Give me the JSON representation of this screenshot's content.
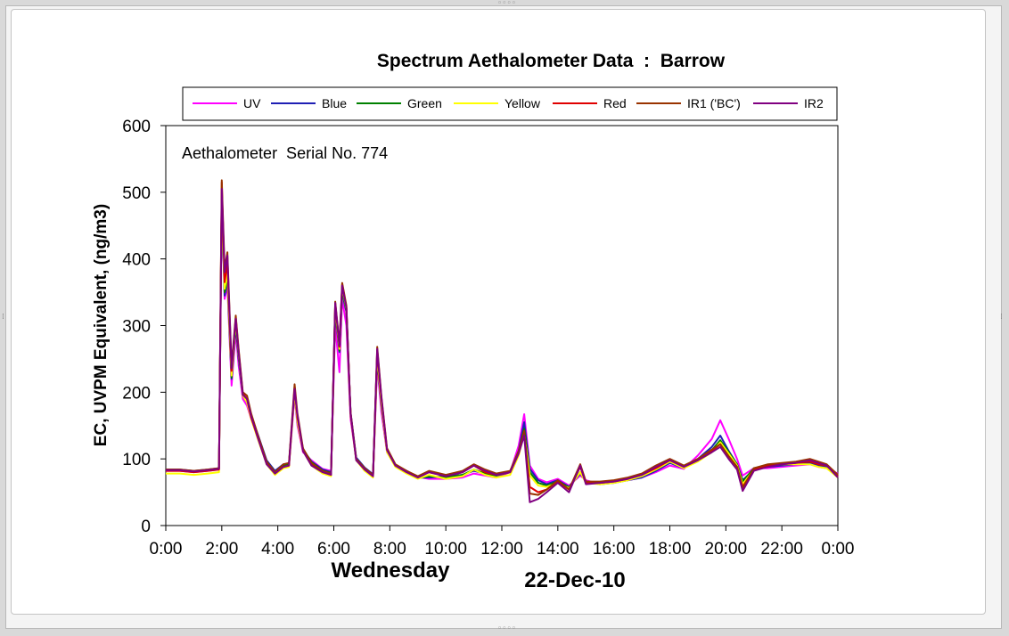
{
  "chart_data": {
    "type": "line",
    "title": "Spectrum Aethalometer Data  :  Barrow",
    "annotation": "Aethalometer  Serial No. 774",
    "ylabel": "EC, UVPM Equivalent, (ng/m3)",
    "xlabel_day": "Wednesday",
    "xlabel_date": "22-Dec-10",
    "ylim": [
      0,
      600
    ],
    "xlim": [
      0,
      24
    ],
    "y_ticks": [
      "0",
      "100",
      "200",
      "300",
      "400",
      "500",
      "600"
    ],
    "x_ticks": [
      "0:00",
      "2:00",
      "4:00",
      "6:00",
      "8:00",
      "10:00",
      "12:00",
      "14:00",
      "16:00",
      "18:00",
      "20:00",
      "22:00",
      "0:00"
    ],
    "legend_position": "top",
    "grid": false,
    "x": [
      0,
      0.5,
      1,
      1.5,
      1.9,
      2.0,
      2.1,
      2.2,
      2.35,
      2.5,
      2.6,
      2.75,
      2.9,
      3.05,
      3.3,
      3.6,
      3.9,
      4.2,
      4.4,
      4.6,
      4.7,
      4.9,
      5.2,
      5.6,
      5.9,
      6.05,
      6.2,
      6.3,
      6.45,
      6.6,
      6.8,
      7.1,
      7.4,
      7.55,
      7.7,
      7.9,
      8.2,
      8.6,
      9.0,
      9.4,
      10.0,
      10.6,
      11.0,
      11.4,
      11.8,
      12.3,
      12.6,
      12.8,
      13.0,
      13.3,
      13.6,
      14.0,
      14.4,
      14.8,
      15.0,
      15.5,
      16.0,
      16.5,
      17.0,
      17.5,
      18.0,
      18.5,
      19.0,
      19.5,
      19.8,
      20.1,
      20.4,
      20.6,
      21.0,
      21.5,
      22.0,
      22.5,
      23.0,
      23.3,
      23.6,
      24.0
    ],
    "series": [
      {
        "name": "UV",
        "color": "#ff00ff",
        "values": [
          82,
          82,
          80,
          82,
          84,
          490,
          340,
          360,
          210,
          290,
          240,
          190,
          180,
          160,
          130,
          95,
          80,
          88,
          90,
          195,
          150,
          110,
          98,
          85,
          82,
          300,
          230,
          340,
          300,
          160,
          100,
          85,
          75,
          240,
          170,
          110,
          90,
          82,
          73,
          70,
          70,
          72,
          78,
          75,
          72,
          80,
          120,
          167,
          90,
          70,
          65,
          70,
          60,
          75,
          68,
          62,
          66,
          68,
          72,
          80,
          90,
          85,
          105,
          130,
          158,
          130,
          100,
          75,
          86,
          86,
          88,
          90,
          92,
          88,
          86,
          78
        ]
      },
      {
        "name": "Blue",
        "color": "#1f1fb4",
        "values": [
          84,
          84,
          82,
          84,
          86,
          495,
          345,
          370,
          220,
          300,
          250,
          195,
          185,
          165,
          135,
          98,
          82,
          92,
          93,
          200,
          155,
          114,
          96,
          84,
          80,
          320,
          260,
          350,
          320,
          170,
          102,
          87,
          77,
          250,
          180,
          112,
          91,
          82,
          72,
          72,
          74,
          76,
          82,
          78,
          75,
          82,
          112,
          155,
          85,
          68,
          62,
          68,
          58,
          78,
          66,
          62,
          64,
          68,
          72,
          82,
          94,
          86,
          100,
          118,
          135,
          112,
          92,
          68,
          84,
          88,
          90,
          92,
          94,
          90,
          88,
          76
        ]
      },
      {
        "name": "Green",
        "color": "#008000",
        "values": [
          83,
          83,
          81,
          83,
          85,
          498,
          350,
          375,
          222,
          305,
          255,
          196,
          186,
          164,
          132,
          96,
          80,
          90,
          92,
          202,
          158,
          115,
          95,
          82,
          79,
          325,
          262,
          355,
          322,
          168,
          100,
          85,
          76,
          252,
          182,
          112,
          90,
          80,
          71,
          74,
          72,
          76,
          84,
          78,
          75,
          80,
          110,
          145,
          80,
          64,
          60,
          66,
          57,
          80,
          66,
          63,
          65,
          69,
          74,
          84,
          96,
          87,
          98,
          113,
          128,
          110,
          92,
          66,
          86,
          90,
          92,
          94,
          96,
          92,
          90,
          76
        ]
      },
      {
        "name": "Yellow",
        "color": "#ffff00",
        "values": [
          78,
          78,
          76,
          78,
          80,
          500,
          355,
          380,
          225,
          308,
          258,
          195,
          185,
          160,
          128,
          92,
          76,
          86,
          88,
          200,
          156,
          112,
          90,
          78,
          74,
          328,
          265,
          358,
          325,
          166,
          98,
          82,
          72,
          255,
          184,
          110,
          88,
          78,
          70,
          76,
          70,
          74,
          84,
          76,
          72,
          76,
          105,
          138,
          75,
          60,
          58,
          64,
          56,
          80,
          64,
          62,
          64,
          68,
          74,
          84,
          96,
          86,
          96,
          110,
          125,
          108,
          90,
          62,
          84,
          90,
          92,
          92,
          92,
          88,
          86,
          72
        ]
      },
      {
        "name": "Red",
        "color": "#e00000",
        "values": [
          82,
          82,
          80,
          82,
          84,
          515,
          365,
          395,
          232,
          312,
          262,
          198,
          190,
          162,
          130,
          94,
          78,
          88,
          90,
          208,
          162,
          115,
          92,
          80,
          76,
          333,
          268,
          362,
          328,
          168,
          99,
          84,
          74,
          262,
          190,
          114,
          90,
          80,
          72,
          80,
          74,
          80,
          90,
          80,
          76,
          80,
          110,
          138,
          58,
          50,
          54,
          66,
          54,
          88,
          64,
          64,
          66,
          70,
          76,
          86,
          98,
          88,
          98,
          112,
          122,
          104,
          88,
          58,
          84,
          90,
          92,
          94,
          96,
          92,
          90,
          74
        ]
      },
      {
        "name": "IR1 ('BC')",
        "color": "#993300",
        "values": [
          84,
          84,
          82,
          84,
          86,
          518,
          385,
          410,
          240,
          315,
          265,
          200,
          195,
          168,
          134,
          96,
          80,
          92,
          94,
          212,
          168,
          116,
          94,
          82,
          78,
          336,
          272,
          364,
          330,
          170,
          100,
          86,
          76,
          268,
          194,
          116,
          92,
          82,
          74,
          82,
          76,
          82,
          92,
          84,
          78,
          82,
          112,
          142,
          48,
          46,
          54,
          68,
          54,
          92,
          66,
          66,
          68,
          72,
          78,
          90,
          100,
          90,
          100,
          114,
          122,
          104,
          88,
          56,
          86,
          92,
          94,
          96,
          100,
          96,
          92,
          76
        ]
      },
      {
        "name": "IR2",
        "color": "#800080",
        "values": [
          83,
          83,
          81,
          83,
          85,
          505,
          380,
          405,
          236,
          310,
          260,
          196,
          190,
          164,
          130,
          92,
          78,
          88,
          90,
          205,
          165,
          112,
          90,
          80,
          76,
          334,
          270,
          360,
          326,
          168,
          98,
          84,
          74,
          265,
          192,
          113,
          90,
          80,
          72,
          80,
          74,
          80,
          90,
          82,
          76,
          80,
          108,
          135,
          35,
          40,
          50,
          64,
          50,
          90,
          62,
          64,
          66,
          70,
          76,
          88,
          98,
          88,
          98,
          110,
          118,
          100,
          84,
          52,
          82,
          88,
          92,
          94,
          98,
          94,
          90,
          72
        ]
      }
    ]
  }
}
